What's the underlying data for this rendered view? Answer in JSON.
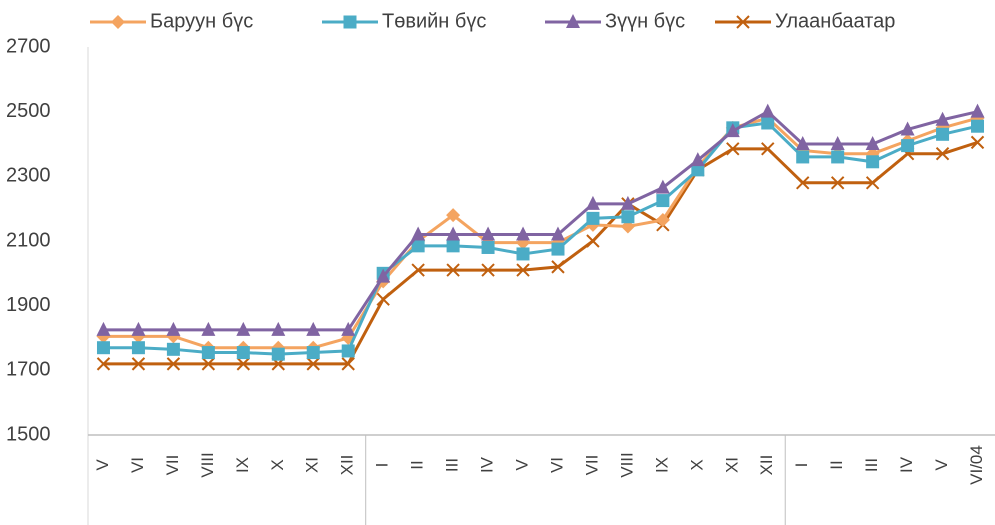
{
  "chart_data": {
    "type": "line",
    "categories": [
      "V",
      "VI",
      "VII",
      "VIII",
      "IX",
      "X",
      "XI",
      "XII",
      "I",
      "II",
      "III",
      "IV",
      "V",
      "VI",
      "VII",
      "VIII",
      "IX",
      "X",
      "XI",
      "XII",
      "I",
      "II",
      "III",
      "IV",
      "V",
      "VI/04"
    ],
    "series": [
      {
        "name": "Баруун бүс",
        "color": "#f4a460",
        "marker": "diamond",
        "values": [
          1805,
          1805,
          1805,
          1770,
          1770,
          1770,
          1770,
          1800,
          1975,
          2100,
          2180,
          2095,
          2095,
          2095,
          2150,
          2145,
          2165,
          2330,
          2450,
          2480,
          2380,
          2370,
          2370,
          2410,
          2450,
          2480
        ]
      },
      {
        "name": "Төвийн бүс",
        "color": "#4bacc6",
        "marker": "square",
        "values": [
          1770,
          1770,
          1765,
          1755,
          1755,
          1750,
          1755,
          1760,
          2000,
          2085,
          2085,
          2080,
          2060,
          2075,
          2170,
          2175,
          2225,
          2320,
          2450,
          2465,
          2360,
          2360,
          2345,
          2395,
          2430,
          2455
        ]
      },
      {
        "name": "Зүүн бүс",
        "color": "#8064a2",
        "marker": "triangle",
        "values": [
          1825,
          1825,
          1825,
          1825,
          1825,
          1825,
          1825,
          1825,
          1990,
          2120,
          2120,
          2120,
          2120,
          2120,
          2215,
          2215,
          2265,
          2350,
          2440,
          2500,
          2400,
          2400,
          2400,
          2445,
          2475,
          2500
        ]
      },
      {
        "name": "Улаанбаатар",
        "color": "#c0600f",
        "marker": "x",
        "values": [
          1720,
          1720,
          1720,
          1720,
          1720,
          1720,
          1720,
          1720,
          1920,
          2010,
          2010,
          2010,
          2010,
          2020,
          2100,
          2215,
          2150,
          2320,
          2385,
          2385,
          2280,
          2280,
          2280,
          2370,
          2370,
          2405
        ]
      }
    ],
    "ylim": [
      1500,
      2700
    ],
    "yticks": [
      1500,
      1700,
      1900,
      2100,
      2300,
      2500,
      2700
    ],
    "grid": false
  }
}
